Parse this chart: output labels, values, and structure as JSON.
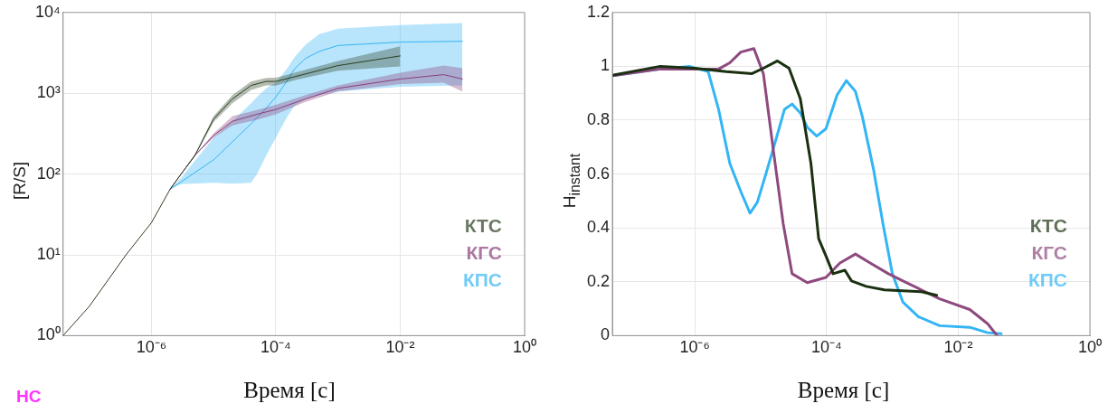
{
  "chart_data": [
    {
      "type": "line",
      "xlabel": "Время [с]",
      "ylabel": "[R/S]",
      "log": "xy",
      "grid": true,
      "legend": "bottom right",
      "xlim": [
        3.8e-08,
        1
      ],
      "ylim": [
        1,
        10000
      ],
      "xticks": [
        {
          "value": 1e-06,
          "label": "10⁻⁶"
        },
        {
          "value": 0.0001,
          "label": "10⁻⁴"
        },
        {
          "value": 0.01,
          "label": "10⁻²"
        },
        {
          "value": 1,
          "label": "10⁰"
        }
      ],
      "yticks": [
        {
          "value": 1,
          "label": "10⁰"
        },
        {
          "value": 10,
          "label": "10¹"
        },
        {
          "value": 100,
          "label": "10²"
        },
        {
          "value": 1000,
          "label": "10³"
        },
        {
          "value": 10000,
          "label": "10⁴"
        }
      ],
      "annotations": [
        "НС"
      ],
      "series": [
        {
          "name": "КТС",
          "color": "#2b3f22",
          "x": [
            3.8e-08,
            1e-07,
            3.9e-07,
            1e-06,
            2e-06,
            3e-06,
            5e-06,
            1e-05,
            2e-05,
            4e-05,
            7e-05,
            0.0001,
            0.0002,
            0.001,
            0.01
          ],
          "values": [
            1,
            2.3,
            10,
            25,
            65,
            100,
            170,
            480,
            850,
            1250,
            1400,
            1400,
            1600,
            2200,
            2900
          ],
          "lower": [
            1,
            2.3,
            10,
            25,
            65,
            100,
            165,
            440,
            750,
            1100,
            1250,
            1240,
            1450,
            1900,
            2150
          ],
          "upper": [
            1,
            2.3,
            10,
            25,
            65,
            100,
            175,
            520,
            950,
            1400,
            1550,
            1560,
            1800,
            2500,
            3800
          ]
        },
        {
          "name": "КГС",
          "color": "#8c3f7a",
          "x": [
            2e-06,
            3e-06,
            5e-06,
            1e-05,
            2e-05,
            5e-05,
            0.0001,
            0.0003,
            0.001,
            0.01,
            0.05,
            0.1
          ],
          "values": [
            65,
            100,
            170,
            300,
            450,
            550,
            630,
            850,
            1150,
            1500,
            1700,
            1500
          ],
          "lower": [
            65,
            100,
            170,
            280,
            400,
            470,
            550,
            780,
            1050,
            1300,
            1350,
            1050
          ],
          "upper": [
            65,
            100,
            170,
            320,
            520,
            620,
            720,
            950,
            1250,
            1800,
            2200,
            2050
          ]
        },
        {
          "name": "КПС",
          "color": "#33b5f5",
          "x": [
            2e-06,
            3e-06,
            1e-05,
            2e-05,
            4e-05,
            5e-05,
            7e-05,
            0.0001,
            0.00015,
            0.0002,
            0.0003,
            0.0005,
            0.001,
            0.01,
            0.1
          ],
          "values": [
            65,
            80,
            150,
            250,
            420,
            500,
            650,
            900,
            1400,
            2000,
            2700,
            3300,
            3900,
            4300,
            4400
          ],
          "lower": [
            65,
            75,
            78,
            76,
            78,
            100,
            170,
            280,
            500,
            700,
            850,
            950,
            1050,
            1200,
            1250
          ],
          "upper": [
            65,
            90,
            280,
            450,
            750,
            900,
            1150,
            1350,
            2000,
            2800,
            4000,
            5400,
            6300,
            7000,
            7400
          ]
        }
      ]
    },
    {
      "type": "line",
      "xlabel": "Время [с]",
      "ylabel": "H$_{instant}$",
      "log": "x",
      "grid": true,
      "legend": "bottom right",
      "xlim": [
        5.6e-08,
        1
      ],
      "ylim": [
        0,
        1.2
      ],
      "xticks": [
        {
          "value": 1e-06,
          "label": "10⁻⁶"
        },
        {
          "value": 0.0001,
          "label": "10⁻⁴"
        },
        {
          "value": 0.01,
          "label": "10⁻²"
        },
        {
          "value": 1,
          "label": "10⁰"
        }
      ],
      "yticks": [
        0,
        0.2,
        0.4,
        0.6,
        0.8,
        1,
        1.2
      ],
      "series": [
        {
          "name": "КТС",
          "color": "#1a3010",
          "x": [
            5.6e-08,
            3e-07,
            1e-06,
            3e-06,
            7.4e-06,
            1.1e-05,
            1.8e-05,
            2.7e-05,
            4e-05,
            5.8e-05,
            7.6e-05,
            9.8e-05,
            0.000126,
            0.00019,
            0.00024,
            0.0004,
            0.00076,
            0.00275,
            0.0047
          ],
          "values": [
            0.967,
            1.0,
            0.993,
            0.98,
            0.973,
            0.993,
            1.02,
            0.993,
            0.88,
            0.64,
            0.36,
            0.296,
            0.23,
            0.243,
            0.203,
            0.183,
            0.17,
            0.163,
            0.15
          ]
        },
        {
          "name": "КГС",
          "color": "#8e4a7e",
          "x": [
            5.6e-08,
            3e-07,
            1e-06,
            2.3e-06,
            3.4e-06,
            5e-06,
            7.9e-06,
            1.1e-05,
            1.6e-05,
            2.2e-05,
            3e-05,
            5.1e-05,
            9.8e-05,
            0.00016,
            0.000275,
            0.00046,
            0.00087,
            0.00145,
            0.00275,
            0.0052,
            0.015,
            0.028,
            0.039
          ],
          "values": [
            0.965,
            0.99,
            0.99,
            0.99,
            1.013,
            1.053,
            1.066,
            0.973,
            0.668,
            0.416,
            0.23,
            0.197,
            0.216,
            0.27,
            0.303,
            0.27,
            0.23,
            0.203,
            0.17,
            0.137,
            0.097,
            0.044,
            0
          ]
        },
        {
          "name": "КПС",
          "color": "#33b5f5",
          "x": [
            5.6e-08,
            3e-07,
            8.3e-07,
            1.6e-06,
            2.3e-06,
            3.4e-06,
            5e-06,
            6.9e-06,
            8.9e-06,
            1.2e-05,
            1.8e-05,
            2.3e-05,
            3e-05,
            4e-05,
            5.1e-05,
            7.1e-05,
            9.8e-05,
            0.000145,
            0.0002,
            0.000275,
            0.00035,
            0.00052,
            0.00072,
            0.001,
            0.00145,
            0.0025,
            0.0052,
            0.015,
            0.028,
            0.045
          ],
          "values": [
            0.965,
            0.99,
            1.0,
            0.98,
            0.84,
            0.64,
            0.535,
            0.455,
            0.495,
            0.6,
            0.748,
            0.84,
            0.86,
            0.827,
            0.774,
            0.741,
            0.768,
            0.894,
            0.947,
            0.907,
            0.814,
            0.615,
            0.416,
            0.23,
            0.124,
            0.07,
            0.037,
            0.031,
            0.011,
            0.007
          ]
        }
      ]
    }
  ]
}
